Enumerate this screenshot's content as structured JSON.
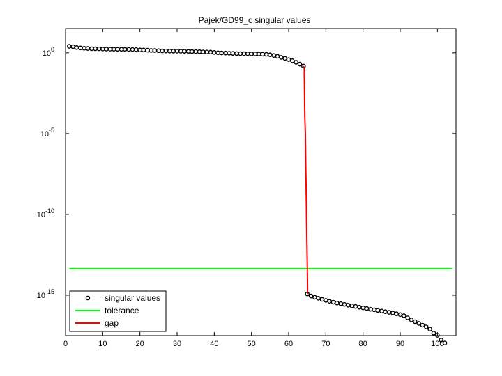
{
  "chart_data": {
    "type": "scatter",
    "title": "Pajek/GD99_c singular values",
    "xlabel": "",
    "ylabel": "",
    "xlim": [
      0,
      105
    ],
    "ylim_log10": [
      -17.5,
      1.5
    ],
    "yscale": "log",
    "grid": false,
    "legend_position": "bottom-left",
    "x_ticks": [
      "0",
      "10",
      "20",
      "30",
      "40",
      "50",
      "60",
      "70",
      "80",
      "90",
      "100"
    ],
    "y_ticks": [
      {
        "base": "10",
        "exp": "0",
        "value": 1
      },
      {
        "base": "10",
        "exp": "-5",
        "value": 1e-05
      },
      {
        "base": "10",
        "exp": "-10",
        "value": 1e-10
      },
      {
        "base": "10",
        "exp": "-15",
        "value": 1e-15
      }
    ],
    "series": [
      {
        "name": "singular values",
        "marker": "circle",
        "color": "#000000",
        "x": [
          1,
          2,
          3,
          4,
          5,
          6,
          7,
          8,
          9,
          10,
          11,
          12,
          13,
          14,
          15,
          16,
          17,
          18,
          19,
          20,
          21,
          22,
          23,
          24,
          25,
          26,
          27,
          28,
          29,
          30,
          31,
          32,
          33,
          34,
          35,
          36,
          37,
          38,
          39,
          40,
          41,
          42,
          43,
          44,
          45,
          46,
          47,
          48,
          49,
          50,
          51,
          52,
          53,
          54,
          55,
          56,
          57,
          58,
          59,
          60,
          61,
          62,
          63,
          64,
          65,
          66,
          67,
          68,
          69,
          70,
          71,
          72,
          73,
          74,
          75,
          76,
          77,
          78,
          79,
          80,
          81,
          82,
          83,
          84,
          85,
          86,
          87,
          88,
          89,
          90,
          91,
          92,
          93,
          94,
          95,
          96,
          97,
          98,
          99,
          100,
          101,
          102
        ],
        "y": [
          2.5,
          2.4,
          2.1,
          2.0,
          1.9,
          1.85,
          1.8,
          1.78,
          1.76,
          1.72,
          1.7,
          1.68,
          1.66,
          1.65,
          1.64,
          1.63,
          1.62,
          1.6,
          1.58,
          1.5,
          1.48,
          1.45,
          1.4,
          1.38,
          1.35,
          1.32,
          1.3,
          1.28,
          1.27,
          1.26,
          1.25,
          1.24,
          1.22,
          1.2,
          1.19,
          1.17,
          1.14,
          1.12,
          1.1,
          1.05,
          1.0,
          0.98,
          0.96,
          0.94,
          0.92,
          0.9,
          0.89,
          0.88,
          0.87,
          0.86,
          0.85,
          0.84,
          0.82,
          0.8,
          0.75,
          0.68,
          0.6,
          0.52,
          0.45,
          0.38,
          0.32,
          0.26,
          0.2,
          0.15,
          1.2e-15,
          9e-16,
          7.5e-16,
          6.5e-16,
          5.5e-16,
          4.8e-16,
          4.2e-16,
          3.7e-16,
          3.3e-16,
          3e-16,
          2.7e-16,
          2.4e-16,
          2.2e-16,
          2e-16,
          1.8e-16,
          1.65e-16,
          1.5e-16,
          1.35e-16,
          1.25e-16,
          1.15e-16,
          1.05e-16,
          9.5e-17,
          8.7e-17,
          7.9e-17,
          7.1e-17,
          6.3e-17,
          5.4e-17,
          4e-17,
          3e-17,
          2.3e-17,
          1.8e-17,
          1.4e-17,
          1.1e-17,
          8e-18,
          4.5e-18,
          3.3e-18,
          1.7e-18,
          1.1e-18
        ]
      },
      {
        "name": "tolerance",
        "type": "line",
        "color": "#00ff00",
        "x": [
          1,
          104
        ],
        "y": [
          4.3e-14,
          4.3e-14
        ]
      },
      {
        "name": "gap",
        "type": "line",
        "color": "#ff0000",
        "x": [
          64,
          64.2,
          64.35,
          64.5,
          64.6,
          64.75,
          64.85,
          65,
          65.1
        ],
        "y": [
          0.15,
          0.1,
          0.0001,
          1e-05,
          1e-07,
          1e-09,
          1e-11,
          1e-13,
          1.2e-15
        ]
      }
    ]
  }
}
